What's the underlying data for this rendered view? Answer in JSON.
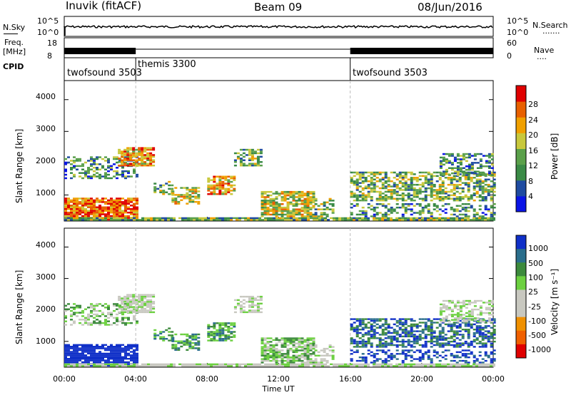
{
  "header": {
    "station": "Inuvik (fitACF)",
    "beam": "Beam 09",
    "date": "08/Jun/2016"
  },
  "noise_panel": {
    "left_label": "N.Sky",
    "right_label": "N.Search",
    "right_label_line": "·······",
    "left_ticks": [
      "10^5",
      "10^0"
    ],
    "right_ticks": [
      "10^5",
      "10^0"
    ]
  },
  "freq_panel": {
    "left_label": "Freq.",
    "left_unit": "[MHz]",
    "right_label": "Nave",
    "right_label_line": "····",
    "left_ticks": [
      "18",
      "8"
    ],
    "right_ticks": [
      "60",
      "0"
    ]
  },
  "cpid": {
    "label": "CPID",
    "segments": [
      {
        "name": "twofsound 3503",
        "start": 0,
        "end": 4
      },
      {
        "name": "themis 3300",
        "start": 4,
        "end": 16
      },
      {
        "name": "twofsound 3503",
        "start": 16,
        "end": 24
      }
    ]
  },
  "chart_data": [
    {
      "type": "heatmap",
      "title": "",
      "ylabel": "Slant Range [km]",
      "yticks": [
        "1000",
        "2000",
        "3000",
        "4000"
      ],
      "ylim": [
        180,
        4600
      ],
      "xlim": [
        0,
        24
      ],
      "colorbar": {
        "label": "Power [dB]",
        "ticks": [
          "4",
          "8",
          "12",
          "16",
          "20",
          "24",
          "28"
        ],
        "range": [
          0,
          30
        ]
      },
      "scatter_regions_description": "Backscatter echoes concentrated near 300-1500 km and 1800-2600 km throughout the day"
    },
    {
      "type": "heatmap",
      "title": "",
      "ylabel": "Slant Range [km]",
      "yticks": [
        "1000",
        "2000",
        "3000",
        "4000"
      ],
      "ylim": [
        180,
        4600
      ],
      "xlim": [
        0,
        24
      ],
      "xlabel": "Time UT",
      "xticks": [
        "00:00",
        "04:00",
        "08:00",
        "12:00",
        "16:00",
        "20:00",
        "00:00"
      ],
      "colorbar": {
        "label": "Velocity [m s⁻¹]",
        "ticks": [
          "1000",
          "500",
          "100",
          "25",
          "-25",
          "-100",
          "-500",
          "-1000"
        ]
      }
    }
  ],
  "colors": {
    "power_scale": [
      "#0a14e6",
      "#1f4ba0",
      "#3a8a46",
      "#5aa04a",
      "#c8c83c",
      "#f0a000",
      "#e86000",
      "#e00000"
    ],
    "velocity_scale": [
      "#1030c8",
      "#2a6e8c",
      "#3c8a3c",
      "#6cd040",
      "#c8c8c0",
      "#c8c8c0",
      "#f09000",
      "#f06000",
      "#e00000"
    ],
    "ground_scatter": "#c0c0b8"
  }
}
